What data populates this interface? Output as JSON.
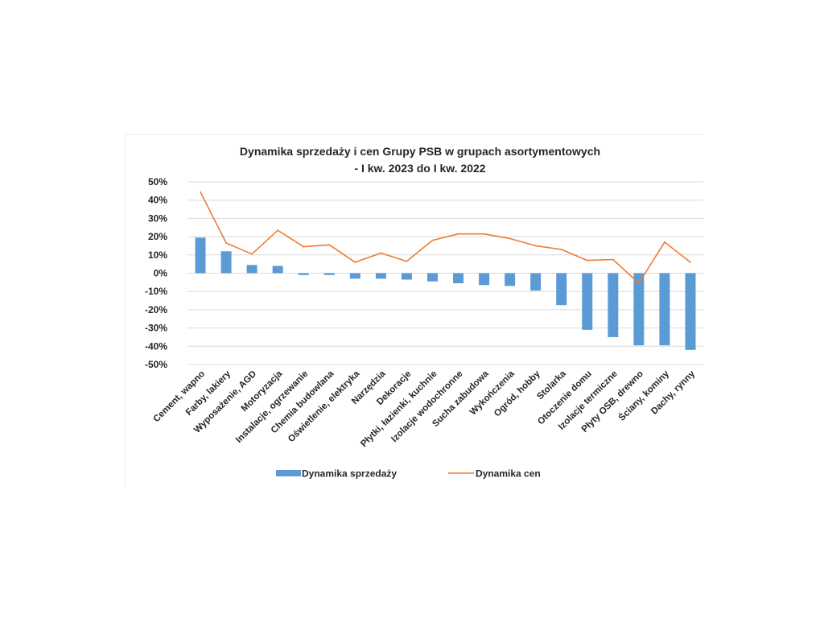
{
  "chart_data": {
    "type": "bar",
    "title": "Dynamika sprzedaży i cen Grupy PSB w grupach asortymentowych",
    "subtitle": "- I kw. 2023 do I kw. 2022",
    "xlabel": "",
    "ylabel": "",
    "ylim": [
      -50,
      50
    ],
    "yticks": [
      50,
      40,
      30,
      20,
      10,
      0,
      -10,
      -20,
      -30,
      -40,
      -50
    ],
    "ytick_labels": [
      "50%",
      "40%",
      "30%",
      "20%",
      "10%",
      "0%",
      "-10%",
      "-20%",
      "-30%",
      "-40%",
      "-50%"
    ],
    "grid": true,
    "legend_position": "bottom",
    "categories": [
      "Cement, wapno",
      "Farby, lakiery",
      "Wyposażenie, AGD",
      "Motoryzacja",
      "Instalacje, ogrzewanie",
      "Chemia budowlana",
      "Oświetlenie, elektryka",
      "Narzędzia",
      "Dekoracje",
      "Płytki, łazienki, kuchnie",
      "Izolacje wodochronne",
      "Sucha zabudowa",
      "Wykończenia",
      "Ogród, hobby",
      "Stolarka",
      "Otoczenie domu",
      "Izolacje termiczne",
      "Płyty OSB, drewno",
      "Ściany, kominy",
      "Dachy, rynny"
    ],
    "series": [
      {
        "name": "Dynamika sprzedaży",
        "type": "bar",
        "color": "#5b9bd5",
        "values": [
          19.5,
          12,
          4.5,
          4,
          -1,
          -1,
          -3,
          -3,
          -3.5,
          -4.5,
          -5.5,
          -6.5,
          -7,
          -9.5,
          -17.5,
          -31,
          -35,
          -39.5,
          -39.5,
          -42
        ]
      },
      {
        "name": "Dynamika cen",
        "type": "line",
        "color": "#ed7d31",
        "values": [
          44.5,
          16.5,
          10.5,
          23.5,
          14.5,
          15.5,
          6,
          11,
          6.5,
          18,
          21.5,
          21.5,
          19,
          15,
          13,
          7,
          7.5,
          -5.5,
          17,
          6
        ]
      }
    ]
  }
}
